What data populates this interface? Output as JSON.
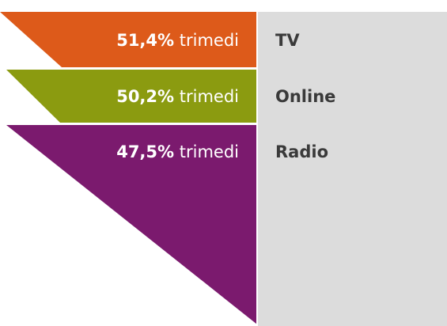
{
  "items": [
    {
      "value": "51,4%",
      "suffix": "trimedi",
      "label": "TV",
      "color": "#dd5a1a"
    },
    {
      "value": "50,2%",
      "suffix": "trimedi",
      "label": "Online",
      "color": "#8b9b10"
    },
    {
      "value": "47,5%",
      "suffix": "trimedi",
      "label": "Radio",
      "color": "#7b1a6e"
    }
  ]
}
